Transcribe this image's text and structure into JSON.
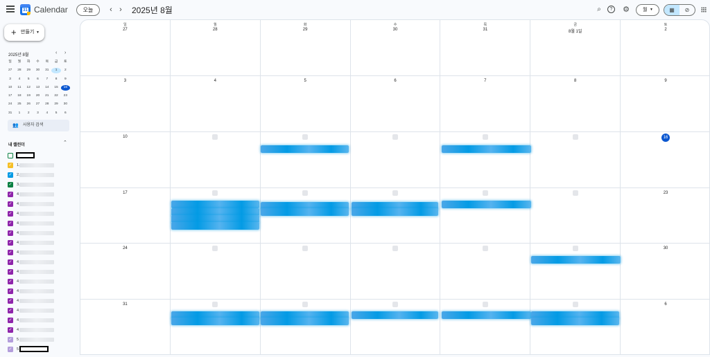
{
  "header": {
    "app_title": "Calendar",
    "today_label": "오늘",
    "period_title": "2025년 8월",
    "view_label": "월",
    "icons": [
      "menu-icon",
      "search-icon",
      "help-icon",
      "settings-icon",
      "calendar-view-icon",
      "tasks-icon",
      "apps-icon"
    ]
  },
  "sidebar": {
    "create_label": "만들기",
    "mini_title": "2025년 8월",
    "mini_weekdays": [
      "일",
      "월",
      "화",
      "수",
      "목",
      "금",
      "토"
    ],
    "mini_days": [
      "27",
      "28",
      "29",
      "30",
      "31",
      "1",
      "2",
      "3",
      "4",
      "5",
      "6",
      "7",
      "8",
      "9",
      "10",
      "11",
      "12",
      "13",
      "14",
      "15",
      "16",
      "17",
      "18",
      "19",
      "20",
      "21",
      "22",
      "23",
      "24",
      "25",
      "26",
      "27",
      "28",
      "29",
      "30",
      "31",
      "1",
      "2",
      "3",
      "4",
      "5",
      "6"
    ],
    "people_search": "사용자 검색",
    "my_calendars_label": "내 캘린더",
    "calendars": [
      {
        "prefix": "",
        "color": "#ffffff",
        "checked": false
      },
      {
        "prefix": "1.",
        "color": "#f6bf26",
        "checked": true
      },
      {
        "prefix": "2.",
        "color": "#039be5",
        "checked": true
      },
      {
        "prefix": "3.",
        "color": "#0b8043",
        "checked": true
      },
      {
        "prefix": "4",
        "color": "#8e24aa",
        "checked": true
      },
      {
        "prefix": "4",
        "color": "#8e24aa",
        "checked": true
      },
      {
        "prefix": "4",
        "color": "#8e24aa",
        "checked": true
      },
      {
        "prefix": "4",
        "color": "#8e24aa",
        "checked": true
      },
      {
        "prefix": "4",
        "color": "#8e24aa",
        "checked": true
      },
      {
        "prefix": "4",
        "color": "#8e24aa",
        "checked": true
      },
      {
        "prefix": "4",
        "color": "#8e24aa",
        "checked": true
      },
      {
        "prefix": "4",
        "color": "#8e24aa",
        "checked": true
      },
      {
        "prefix": "4",
        "color": "#8e24aa",
        "checked": true
      },
      {
        "prefix": "4",
        "color": "#8e24aa",
        "checked": true
      },
      {
        "prefix": "4",
        "color": "#8e24aa",
        "checked": true
      },
      {
        "prefix": "4",
        "color": "#8e24aa",
        "checked": true
      },
      {
        "prefix": "4",
        "color": "#8e24aa",
        "checked": true
      },
      {
        "prefix": "4",
        "color": "#8e24aa",
        "checked": true
      },
      {
        "prefix": "4",
        "color": "#8e24aa",
        "checked": true
      },
      {
        "prefix": "5",
        "color": "#b39ddb",
        "checked": true
      },
      {
        "prefix": "5",
        "color": "#b39ddb",
        "checked": true
      }
    ]
  },
  "month": {
    "weekdays": [
      "일",
      "월",
      "화",
      "수",
      "목",
      "금",
      "토"
    ],
    "cells": [
      "27",
      "28",
      "29",
      "30",
      "31",
      "8월 1일",
      "2",
      "3",
      "4",
      "5",
      "6",
      "7",
      "8",
      "9",
      "10",
      "",
      "",
      "",
      "",
      "",
      "16",
      "17",
      "",
      "",
      "",
      "",
      "",
      "23",
      "24",
      "",
      "",
      "",
      "",
      "",
      "30",
      "31",
      "",
      "",
      "",
      "",
      "",
      "6"
    ]
  },
  "colors": {
    "accent": "#0b57d0",
    "event": "#039be5"
  }
}
